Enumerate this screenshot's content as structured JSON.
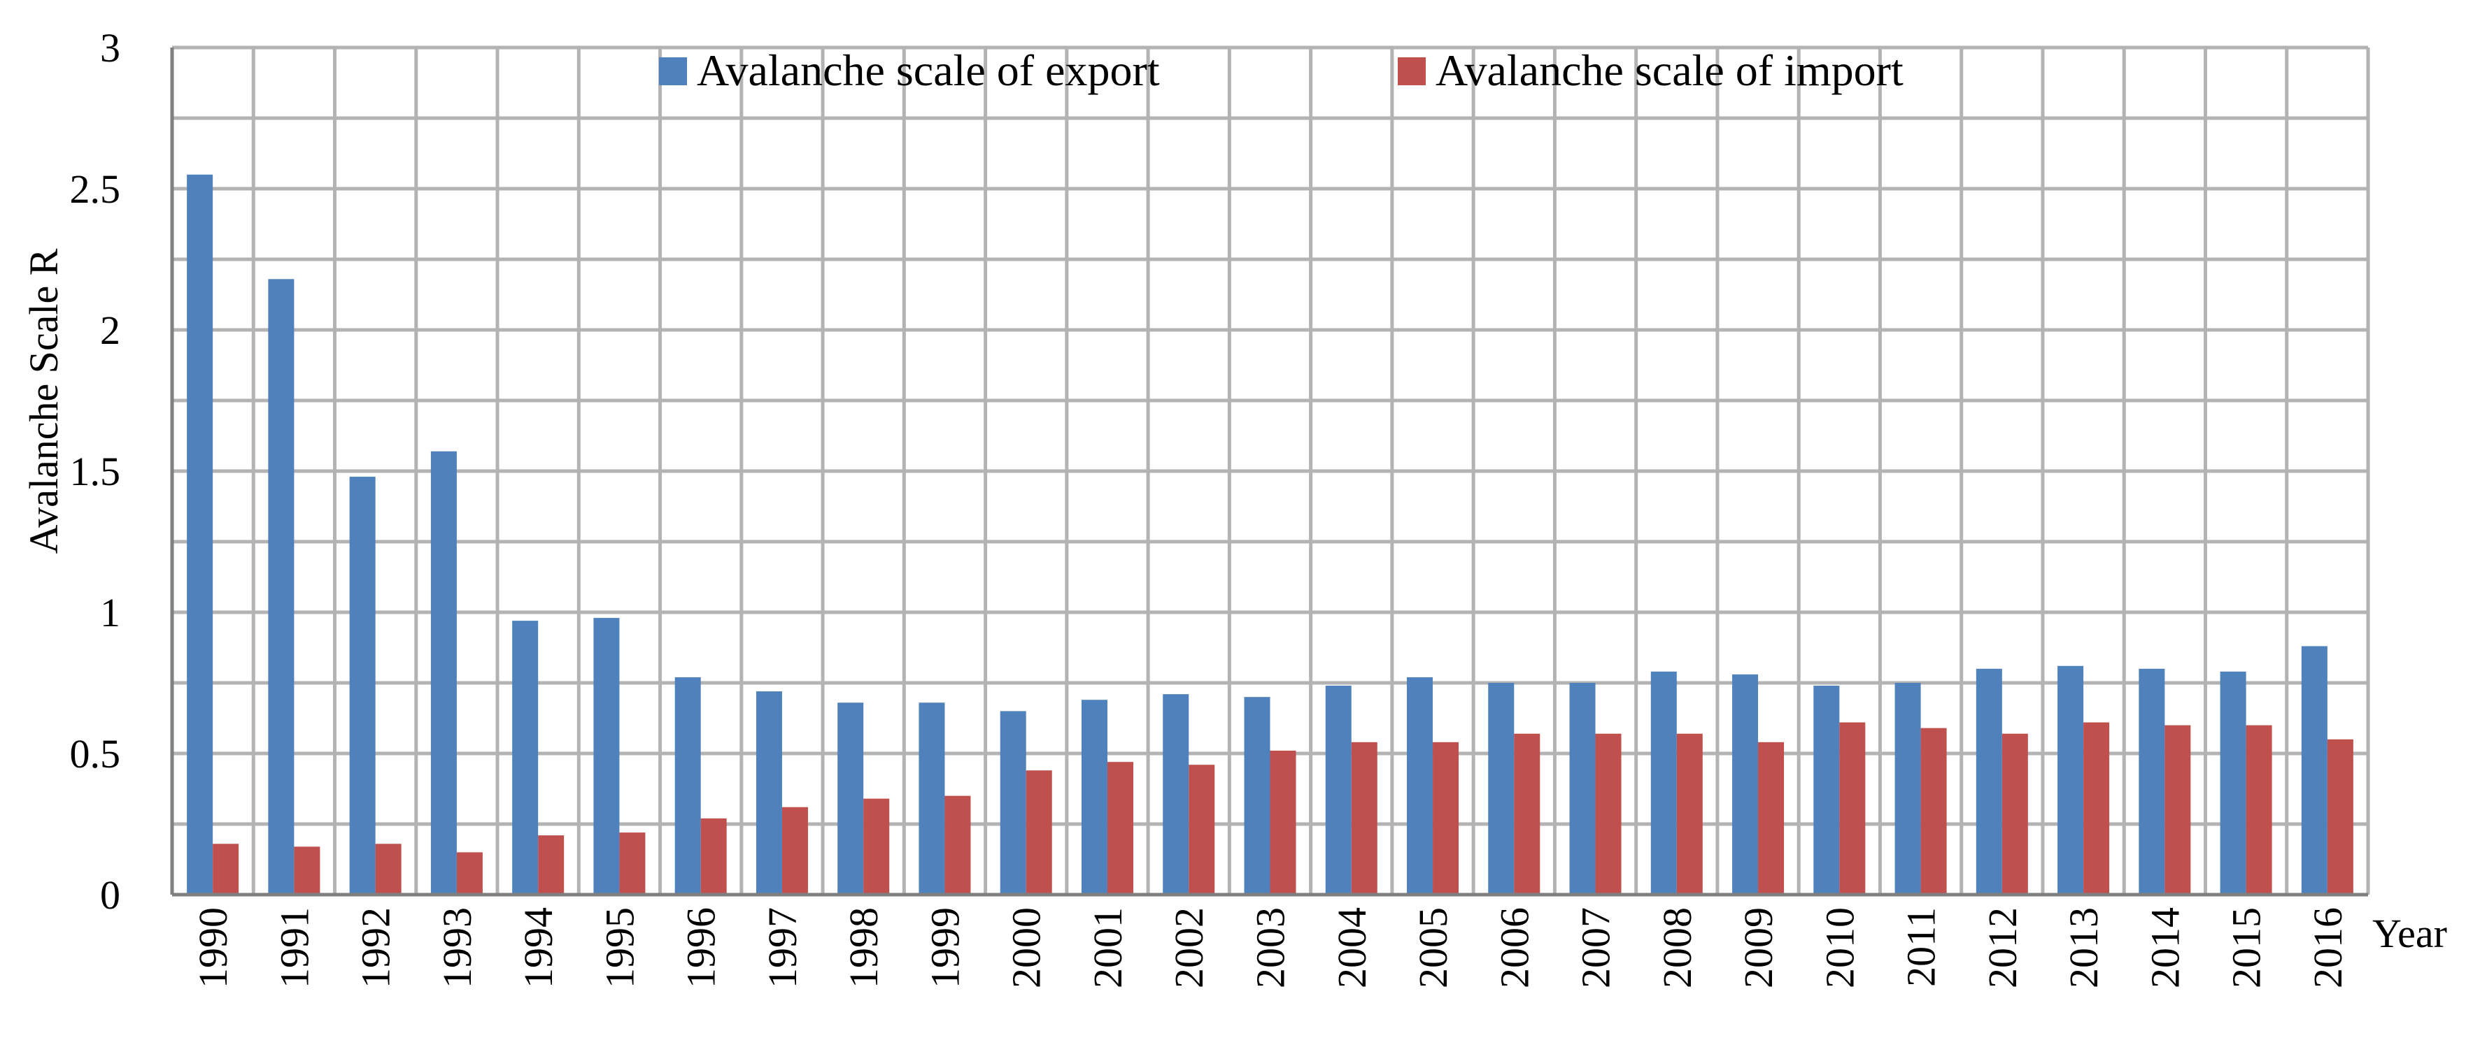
{
  "chart_data": {
    "type": "bar",
    "title": "",
    "xlabel": "Year",
    "ylabel": "Avalanche Scale R",
    "ylim": [
      0,
      3
    ],
    "yticks": [
      0,
      0.5,
      1,
      1.5,
      2,
      2.5,
      3
    ],
    "ytick_labels": [
      "0",
      "0.5",
      "1",
      "1.5",
      "2",
      "2.5",
      "3"
    ],
    "minor_grid_step": 0.25,
    "grid": true,
    "legend_position": "top",
    "categories": [
      "1990",
      "1991",
      "1992",
      "1993",
      "1994",
      "1995",
      "1996",
      "1997",
      "1998",
      "1999",
      "2000",
      "2001",
      "2002",
      "2003",
      "2004",
      "2005",
      "2006",
      "2007",
      "2008",
      "2009",
      "2010",
      "2011",
      "2012",
      "2013",
      "2014",
      "2015",
      "2016"
    ],
    "series": [
      {
        "name": "Avalanche scale of export",
        "color": "#4f81bd",
        "values": [
          2.55,
          2.18,
          1.48,
          1.57,
          0.97,
          0.98,
          0.77,
          0.72,
          0.68,
          0.68,
          0.65,
          0.69,
          0.71,
          0.7,
          0.74,
          0.77,
          0.75,
          0.75,
          0.79,
          0.78,
          0.74,
          0.75,
          0.8,
          0.81,
          0.8,
          0.79,
          0.88
        ]
      },
      {
        "name": "Avalanche scale of import",
        "color": "#c0504d",
        "values": [
          0.18,
          0.17,
          0.18,
          0.15,
          0.21,
          0.22,
          0.27,
          0.31,
          0.34,
          0.35,
          0.44,
          0.47,
          0.46,
          0.51,
          0.54,
          0.54,
          0.57,
          0.57,
          0.57,
          0.54,
          0.61,
          0.59,
          0.57,
          0.61,
          0.6,
          0.6,
          0.55
        ]
      }
    ]
  }
}
